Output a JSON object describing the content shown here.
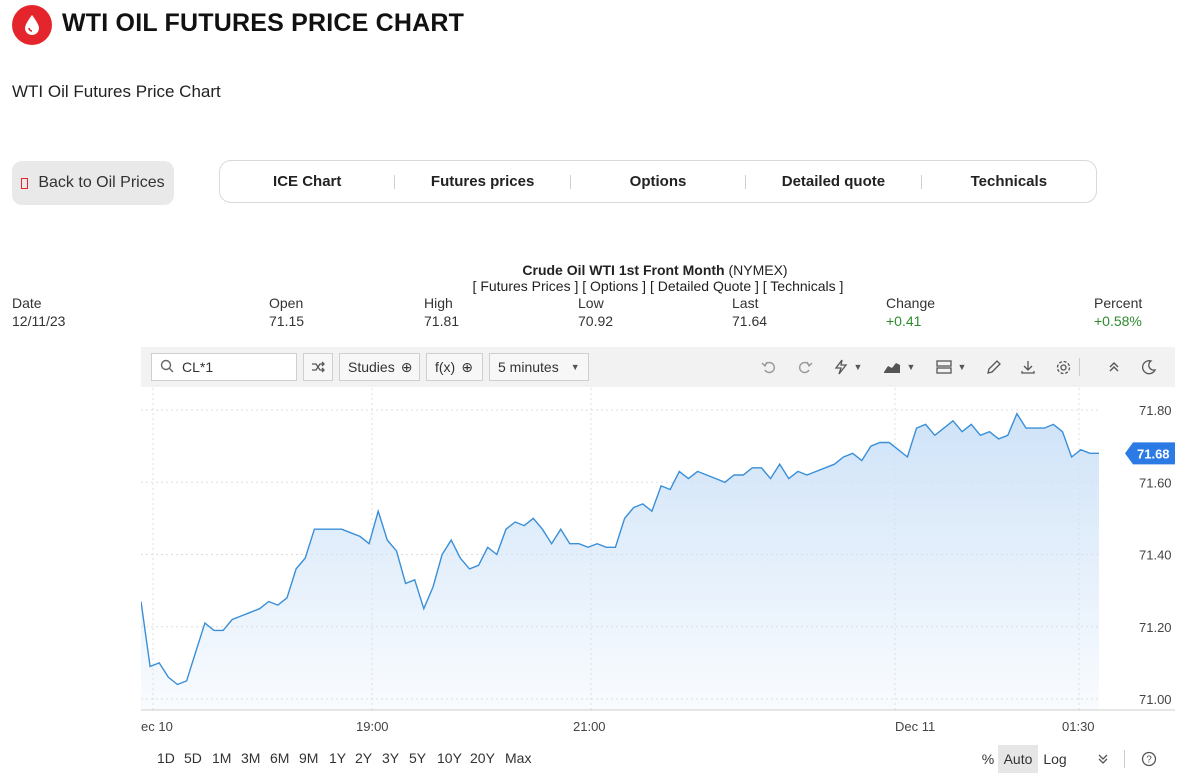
{
  "header": {
    "title": "WTI OIL FUTURES PRICE CHART",
    "subtitle": "WTI Oil Futures Price Chart",
    "logo_icon": "oil-drop-icon",
    "brand_color": "#e4262c"
  },
  "back_button": {
    "label": "Back to Oil Prices"
  },
  "nav_tabs": [
    {
      "label": "ICE Chart"
    },
    {
      "label": "Futures prices"
    },
    {
      "label": "Options"
    },
    {
      "label": "Detailed quote"
    },
    {
      "label": "Technicals"
    }
  ],
  "quote": {
    "instrument": "Crude Oil WTI 1st Front Month",
    "exchange": "(NYMEX)",
    "links": "[ Futures Prices ] [ Options ] [ Detailed Quote ] [ Technicals ]",
    "labels": {
      "date": "Date",
      "open": "Open",
      "high": "High",
      "low": "Low",
      "last": "Last",
      "change": "Change",
      "percent": "Percent"
    },
    "values": {
      "date": "12/11/23",
      "open": "71.15",
      "high": "71.81",
      "low": "70.92",
      "last": "71.64",
      "change": "+0.41",
      "percent": "+0.58%"
    },
    "positive_color": "#2e8b2e"
  },
  "toolbar": {
    "symbol": "CL*1",
    "studies_label": "Studies",
    "fx_label": "f(x)",
    "interval_label": "5 minutes",
    "icons": [
      "search-icon",
      "shuffle-icon",
      "plus-circle-icon",
      "undo-icon",
      "redo-icon",
      "lightning-icon",
      "chart-type-icon",
      "layout-icon",
      "pencil-icon",
      "download-icon",
      "gear-icon",
      "collapse-icon",
      "dark-mode-icon"
    ]
  },
  "chart_data": {
    "type": "area",
    "line_color": "#3a8fd8",
    "fill_color": "#cfe3f8",
    "y_ticks": [
      "71.80",
      "71.60",
      "71.40",
      "71.20",
      "71.00"
    ],
    "ylim": [
      70.97,
      71.85
    ],
    "x_tick_labels": [
      "ec 10",
      "19:00",
      "21:00",
      "Dec 11",
      "01:30"
    ],
    "last_value_label": "71.68",
    "last_value": 71.68,
    "series": [
      {
        "values": [
          71.27,
          71.09,
          71.1,
          71.06,
          71.04,
          71.05,
          71.13,
          71.21,
          71.19,
          71.19,
          71.22,
          71.23,
          71.24,
          71.25,
          71.27,
          71.26,
          71.28,
          71.36,
          71.39,
          71.47,
          71.47,
          71.47,
          71.47,
          71.46,
          71.45,
          71.43,
          71.52,
          71.44,
          71.41,
          71.32,
          71.33,
          71.25,
          71.31,
          71.4,
          71.44,
          71.39,
          71.36,
          71.37,
          71.42,
          71.4,
          71.47,
          71.49,
          71.48,
          71.5,
          71.47,
          71.43,
          71.47,
          71.43,
          71.43,
          71.42,
          71.43,
          71.42,
          71.42,
          71.5,
          71.53,
          71.54,
          71.52,
          71.59,
          71.58,
          71.63,
          71.61,
          71.63,
          71.62,
          71.61,
          71.6,
          71.62,
          71.62,
          71.64,
          71.64,
          71.61,
          71.65,
          71.61,
          71.63,
          71.62,
          71.63,
          71.64,
          71.65,
          71.67,
          71.68,
          71.66,
          71.7,
          71.71,
          71.71,
          71.69,
          71.67,
          71.75,
          71.76,
          71.73,
          71.75,
          71.77,
          71.74,
          71.76,
          71.73,
          71.74,
          71.72,
          71.73,
          71.79,
          71.75,
          71.75,
          71.75,
          71.76,
          71.74,
          71.67,
          71.69,
          71.68,
          71.68
        ]
      }
    ]
  },
  "bottom_bar": {
    "periods": [
      "1D",
      "5D",
      "1M",
      "3M",
      "6M",
      "9M",
      "1Y",
      "2Y",
      "3Y",
      "5Y",
      "10Y",
      "20Y",
      "Max"
    ],
    "percent_label": "%",
    "auto_label": "Auto",
    "log_label": "Log"
  }
}
